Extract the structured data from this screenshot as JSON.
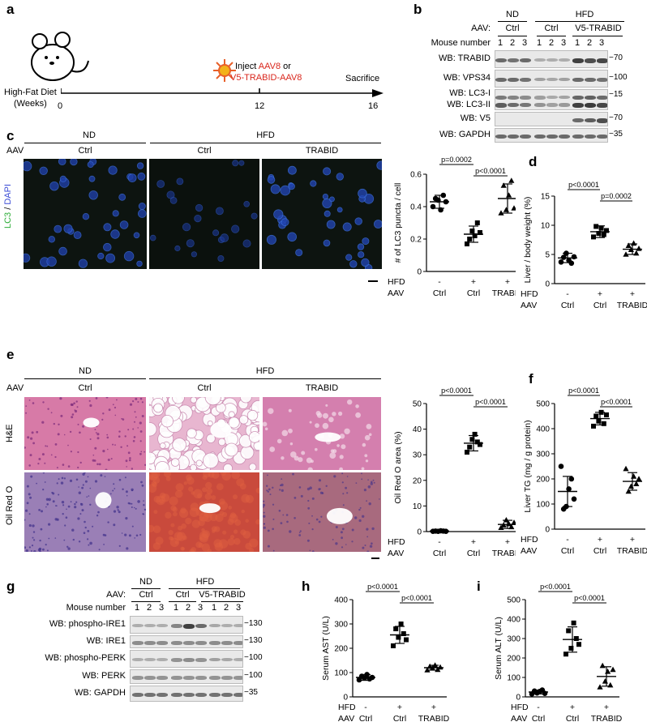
{
  "panels": {
    "a": {
      "label": "a",
      "timeline": {
        "axis_title_line1": "High-Fat Diet",
        "axis_title_line2": "(Weeks)",
        "ticks": [
          "0",
          "12",
          "16"
        ],
        "inject_prefix": "Inject ",
        "inject_aav8": "AAV8",
        "inject_or": " or",
        "inject_v5": "V5-TRABID-AAV8",
        "sacrifice": "Sacrifice",
        "highlight_color": "#d9261c",
        "virus_icon": "virus-icon",
        "mouse_icon": "mouse-icon"
      }
    },
    "b": {
      "label": "b",
      "group_nd": "ND",
      "group_hfd": "HFD",
      "aav_label": "AAV:",
      "aav_ctrl_1": "Ctrl",
      "aav_ctrl_2": "Ctrl",
      "aav_v5": "V5-TRABID",
      "mouse_number_label": "Mouse number",
      "mouse_numbers": [
        "1",
        "2",
        "3",
        "1",
        "2",
        "3",
        "1",
        "2",
        "3"
      ],
      "blots": [
        {
          "label": "WB: TRABID",
          "marker": "70"
        },
        {
          "label": "WB: VPS34",
          "marker": "100"
        },
        {
          "label": "WB: LC3-I",
          "label2": "WB: LC3-II",
          "marker": "15"
        },
        {
          "label": "WB: V5",
          "marker": "70"
        },
        {
          "label": "WB: GAPDH",
          "marker": "35"
        }
      ]
    },
    "c": {
      "label": "c",
      "group_nd": "ND",
      "group_hfd": "HFD",
      "aav_label": "AAV",
      "col_ctrl_1": "Ctrl",
      "col_ctrl_2": "Ctrl",
      "col_trabid": "TRABID",
      "stain_lc3": "LC3",
      "stain_sep": " / ",
      "stain_dapi": "DAPI",
      "lc3_color": "#2fae3a",
      "dapi_color": "#3a4bd6"
    },
    "d": {
      "label": "d"
    },
    "e": {
      "label": "e",
      "group_nd": "ND",
      "group_hfd": "HFD",
      "aav_label": "AAV",
      "col_ctrl_1": "Ctrl",
      "col_ctrl_2": "Ctrl",
      "col_trabid": "TRABID",
      "row_he": "H&E",
      "row_oro": "Oil Red O"
    },
    "f": {
      "label": "f"
    },
    "g": {
      "label": "g",
      "group_nd": "ND",
      "group_hfd": "HFD",
      "aav_label": "AAV:",
      "aav_ctrl_1": "Ctrl",
      "aav_ctrl_2": "Ctrl",
      "aav_v5": "V5-TRABID",
      "mouse_number_label": "Mouse number",
      "mouse_numbers": [
        "1",
        "2",
        "3",
        "1",
        "2",
        "3",
        "1",
        "2",
        "3"
      ],
      "blots": [
        {
          "label": "WB: phospho-IRE1",
          "marker": "130"
        },
        {
          "label": "WB: IRE1",
          "marker": "130"
        },
        {
          "label": "WB: phospho-PERK",
          "marker": "100"
        },
        {
          "label": "WB: PERK",
          "marker": "100"
        },
        {
          "label": "WB: GAPDH",
          "marker": "35"
        }
      ]
    },
    "h": {
      "label": "h"
    },
    "i": {
      "label": "i"
    }
  },
  "chart_data": [
    {
      "id": "c",
      "type": "scatter",
      "ylabel": "# of LC3 puncta / cell",
      "ylim": [
        0,
        0.6
      ],
      "yticks": [
        "0",
        "0.2",
        "0.4",
        "0.6"
      ],
      "row1_label": "HFD",
      "row2_label": "AAV",
      "row1": [
        "-",
        "+",
        "+"
      ],
      "row2": [
        "Ctrl",
        "Ctrl",
        "TRABID"
      ],
      "means": [
        0.43,
        0.23,
        0.45
      ],
      "sd": [
        0.04,
        0.05,
        0.09
      ],
      "markers": [
        "circle",
        "square",
        "triangle"
      ],
      "points": [
        [
          0.4,
          0.45,
          0.44,
          0.38,
          0.47,
          0.43
        ],
        [
          0.17,
          0.2,
          0.25,
          0.22,
          0.3,
          0.24
        ],
        [
          0.36,
          0.53,
          0.38,
          0.47,
          0.56,
          0.39
        ]
      ],
      "comparisons": [
        {
          "from": 0,
          "to": 1,
          "label": "p=0.0002"
        },
        {
          "from": 1,
          "to": 2,
          "label": "p<0.0001"
        }
      ]
    },
    {
      "id": "d",
      "type": "scatter",
      "ylabel": "Liver / body weight (%)",
      "ylim": [
        0,
        15
      ],
      "yticks": [
        "0",
        "5",
        "10",
        "15"
      ],
      "row1_label": "HFD",
      "row2_label": "AAV",
      "row1": [
        "-",
        "+",
        "+"
      ],
      "row2": [
        "Ctrl",
        "Ctrl",
        "TRABID"
      ],
      "means": [
        4.4,
        8.9,
        5.9
      ],
      "sd": [
        0.8,
        1.0,
        0.9
      ],
      "markers": [
        "circle",
        "square",
        "triangle"
      ],
      "points": [
        [
          3.7,
          4.5,
          5.2,
          4.0,
          3.5,
          4.6
        ],
        [
          8.0,
          9.8,
          8.6,
          9.5,
          8.4,
          9.1
        ],
        [
          5.0,
          6.5,
          5.8,
          6.9,
          5.2,
          6.0
        ]
      ],
      "comparisons": [
        {
          "from": 0,
          "to": 1,
          "label": "p<0.0001"
        },
        {
          "from": 1,
          "to": 2,
          "label": "p=0.0002"
        }
      ]
    },
    {
      "id": "e",
      "type": "scatter",
      "ylabel": "Oil Red O area (%)",
      "ylim": [
        0,
        50
      ],
      "yticks": [
        "0",
        "10",
        "20",
        "30",
        "40",
        "50"
      ],
      "row1_label": "HFD",
      "row2_label": "AAV",
      "row1": [
        "-",
        "+",
        "+"
      ],
      "row2": [
        "Ctrl",
        "Ctrl",
        "TRABID"
      ],
      "means": [
        0.2,
        34.5,
        2.8
      ],
      "sd": [
        0.1,
        3.0,
        1.6
      ],
      "markers": [
        "circle",
        "square",
        "triangle"
      ],
      "points": [
        [
          0.1,
          0.2,
          0.1,
          0.3,
          0.2,
          0.1
        ],
        [
          31,
          33,
          36,
          38,
          35,
          34
        ],
        [
          1.5,
          2.5,
          4.5,
          3.0,
          1.8,
          3.5
        ]
      ],
      "comparisons": [
        {
          "from": 0,
          "to": 1,
          "label": "p<0.0001"
        },
        {
          "from": 1,
          "to": 2,
          "label": "p<0.0001"
        }
      ]
    },
    {
      "id": "f",
      "type": "scatter",
      "ylabel": "Liver TG (mg / g protein)",
      "ylim": [
        0,
        500
      ],
      "yticks": [
        "0",
        "100",
        "200",
        "300",
        "400",
        "500"
      ],
      "row1_label": "HFD",
      "row2_label": "AAV",
      "row1": [
        "-",
        "+",
        "+"
      ],
      "row2": [
        "Ctrl",
        "Ctrl",
        "TRABID"
      ],
      "means": [
        150,
        440,
        190
      ],
      "sd": [
        60,
        25,
        35
      ],
      "markers": [
        "circle",
        "square",
        "triangle"
      ],
      "points": [
        [
          250,
          80,
          90,
          160,
          200,
          120
        ],
        [
          410,
          450,
          430,
          465,
          420,
          455
        ],
        [
          240,
          150,
          170,
          210,
          180,
          200
        ]
      ],
      "comparisons": [
        {
          "from": 0,
          "to": 1,
          "label": "p<0.0001"
        },
        {
          "from": 1,
          "to": 2,
          "label": "p<0.0001"
        }
      ]
    },
    {
      "id": "h",
      "type": "scatter",
      "ylabel": "Serum AST (U/L)",
      "ylim": [
        0,
        400
      ],
      "yticks": [
        "0",
        "100",
        "200",
        "300",
        "400"
      ],
      "row1_label": "HFD",
      "row2_label": "AAV",
      "row1": [
        "-",
        "+",
        "+"
      ],
      "row2": [
        "Ctrl",
        "Ctrl",
        "TRABID"
      ],
      "means": [
        80,
        255,
        120
      ],
      "sd": [
        12,
        35,
        10
      ],
      "markers": [
        "circle",
        "square",
        "triangle"
      ],
      "points": [
        [
          70,
          85,
          78,
          92,
          74,
          80
        ],
        [
          210,
          280,
          245,
          300,
          260,
          235
        ],
        [
          110,
          125,
          118,
          130,
          112,
          122
        ]
      ],
      "comparisons": [
        {
          "from": 0,
          "to": 1,
          "label": "p<0.0001"
        },
        {
          "from": 1,
          "to": 2,
          "label": "p<0.0001"
        }
      ]
    },
    {
      "id": "i",
      "type": "scatter",
      "ylabel": "Serum ALT (U/L)",
      "ylim": [
        0,
        500
      ],
      "yticks": [
        "0",
        "100",
        "200",
        "300",
        "400",
        "500"
      ],
      "row1_label": "HFD",
      "row2_label": "AAV",
      "row1": [
        "-",
        "+",
        "+"
      ],
      "row2": [
        "Ctrl",
        "Ctrl",
        "TRABID"
      ],
      "means": [
        25,
        295,
        105
      ],
      "sd": [
        10,
        65,
        50
      ],
      "markers": [
        "circle",
        "square",
        "triangle"
      ],
      "points": [
        [
          15,
          30,
          20,
          28,
          35,
          18
        ],
        [
          220,
          340,
          250,
          380,
          300,
          270
        ],
        [
          50,
          160,
          80,
          130,
          60,
          140
        ]
      ],
      "comparisons": [
        {
          "from": 0,
          "to": 1,
          "label": "p<0.0001"
        },
        {
          "from": 1,
          "to": 2,
          "label": "p<0.0001"
        }
      ]
    }
  ]
}
